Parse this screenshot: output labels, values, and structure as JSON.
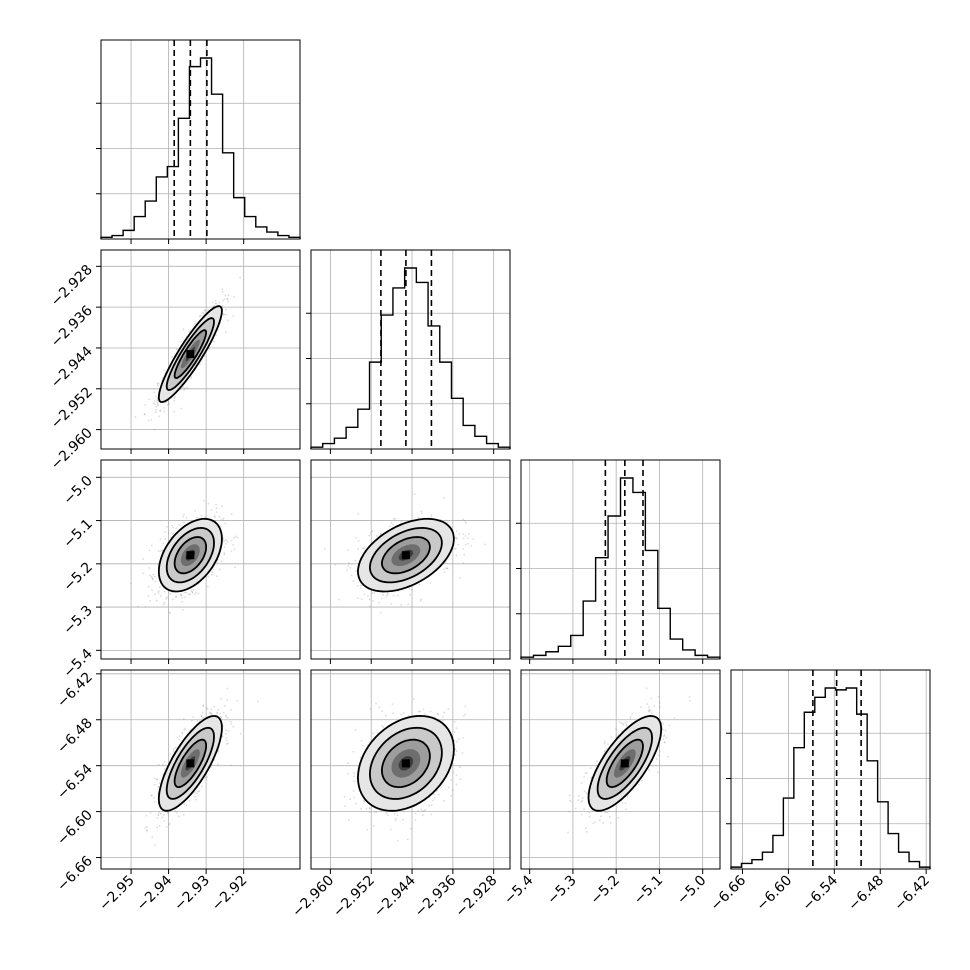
{
  "chart_data": {
    "type": "corner",
    "grid": true,
    "parameters": [
      {
        "range": [
          -2.958,
          -2.905
        ],
        "ticks": [
          -2.95,
          -2.94,
          -2.93,
          -2.92
        ],
        "tick_labels": [
          "−2.95",
          "−2.94",
          "−2.93",
          "−2.92"
        ],
        "mean": -2.9342,
        "std": 0.0042,
        "quantiles": [
          -2.9385,
          -2.9342,
          -2.9298
        ],
        "hist_counts": [
          1,
          2,
          5,
          13,
          22,
          36,
          42,
          70,
          100,
          105,
          84,
          50,
          24,
          13,
          7,
          4,
          2,
          1
        ]
      },
      {
        "range": [
          -2.9638,
          -2.9248
        ],
        "ticks": [
          -2.96,
          -2.952,
          -2.944,
          -2.936,
          -2.928
        ],
        "tick_labels": [
          "−2.960",
          "−2.952",
          "−2.944",
          "−2.936",
          "−2.928"
        ],
        "mean": -2.9452,
        "std": 0.0047,
        "quantiles": [
          -2.9501,
          -2.9452,
          -2.9402
        ],
        "hist_counts": [
          1,
          3,
          6,
          12,
          22,
          48,
          74,
          89,
          100,
          92,
          68,
          48,
          28,
          13,
          7,
          3,
          1
        ]
      },
      {
        "range": [
          -5.42,
          -4.96
        ],
        "ticks": [
          -5.4,
          -5.3,
          -5.2,
          -5.1,
          -5.0
        ],
        "tick_labels": [
          "−5.4",
          "−5.3",
          "−5.2",
          "−5.1",
          "−5.0"
        ],
        "mean": -5.18,
        "std": 0.042,
        "quantiles": [
          -5.225,
          -5.18,
          -5.138
        ],
        "hist_counts": [
          1,
          2,
          4,
          7,
          13,
          32,
          56,
          79,
          100,
          92,
          60,
          28,
          11,
          5,
          2,
          1
        ]
      },
      {
        "range": [
          -6.675,
          -6.415
        ],
        "ticks": [
          -6.66,
          -6.6,
          -6.54,
          -6.48,
          -6.42
        ],
        "tick_labels": [
          "−6.66",
          "−6.60",
          "−6.54",
          "−6.48",
          "−6.42"
        ],
        "mean": -6.537,
        "std": 0.031,
        "quantiles": [
          -6.568,
          -6.537,
          -6.505
        ],
        "hist_counts": [
          1,
          3,
          5,
          9,
          18,
          38,
          65,
          84,
          92,
          97,
          96,
          97,
          83,
          58,
          36,
          19,
          9,
          4,
          1
        ]
      }
    ],
    "correlations": [
      [
        1,
        0.9,
        0.45,
        0.75
      ],
      [
        0.9,
        1,
        0.45,
        0.3
      ],
      [
        0.45,
        0.45,
        1,
        0.72
      ],
      [
        0.75,
        0.3,
        0.72,
        1
      ]
    ]
  }
}
